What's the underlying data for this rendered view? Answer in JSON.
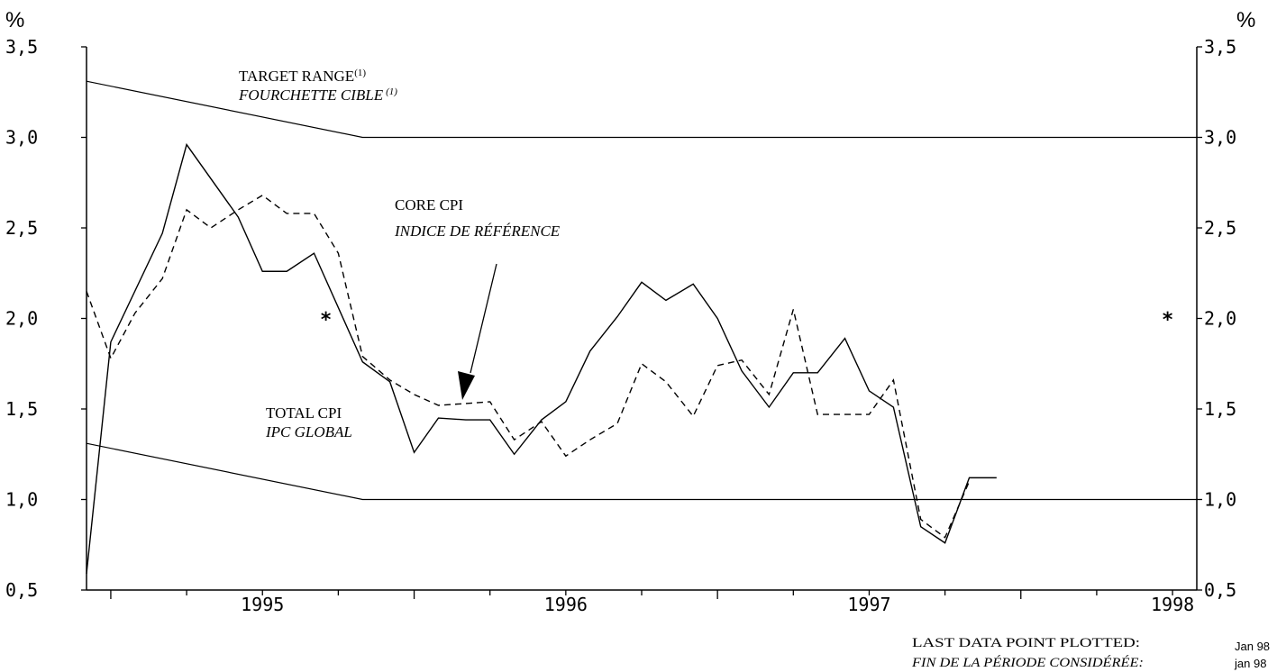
{
  "chart_data": {
    "type": "line",
    "y_unit_left": "%",
    "y_unit_right": "%",
    "ylim": [
      0.5,
      3.5
    ],
    "yticks": [
      "0,5",
      "1,0",
      "1,5",
      "2,0",
      "2,5",
      "3,0",
      "3,5"
    ],
    "xlim": [
      1994.92,
      1998.58
    ],
    "xtick_labels": [
      "1995",
      "1996",
      "1997",
      "1998"
    ],
    "grid": false,
    "series": [
      {
        "name": "TOTAL CPI / IPC GLOBAL",
        "style": "solid",
        "x": [
          1994.92,
          1995.0,
          1995.17,
          1995.25,
          1995.42,
          1995.5,
          1995.58,
          1995.67,
          1995.75,
          1995.83,
          1995.92,
          1996.0,
          1996.08,
          1996.17,
          1996.25,
          1996.33,
          1996.42,
          1996.5,
          1996.58,
          1996.67,
          1996.75,
          1996.83,
          1996.92,
          1997.0,
          1997.08,
          1997.17,
          1997.25,
          1997.33,
          1997.42,
          1997.5,
          1997.58,
          1997.67,
          1997.75,
          1997.83,
          1997.92
        ],
        "values": [
          0.59,
          1.87,
          2.47,
          2.96,
          2.56,
          2.26,
          2.26,
          2.36,
          2.06,
          1.76,
          1.65,
          1.26,
          1.45,
          1.44,
          1.44,
          1.25,
          1.44,
          1.54,
          1.82,
          2.01,
          2.2,
          2.1,
          2.19,
          2.0,
          1.71,
          1.51,
          1.7,
          1.7,
          1.89,
          1.6,
          1.51,
          0.85,
          0.76,
          1.12,
          1.12
        ]
      },
      {
        "name": "CORE CPI / INDICE DE RÉFÉRENCE",
        "style": "dashed",
        "x": [
          1994.92,
          1995.0,
          1995.08,
          1995.17,
          1995.25,
          1995.33,
          1995.42,
          1995.5,
          1995.58,
          1995.67,
          1995.75,
          1995.83,
          1995.92,
          1996.0,
          1996.08,
          1996.17,
          1996.25,
          1996.33,
          1996.42,
          1996.5,
          1996.58,
          1996.67,
          1996.75,
          1996.83,
          1996.92,
          1997.0,
          1997.08,
          1997.17,
          1997.25,
          1997.33,
          1997.42,
          1997.5,
          1997.58,
          1997.67,
          1997.75,
          1997.83
        ],
        "values": [
          2.15,
          1.78,
          2.03,
          2.22,
          2.6,
          2.5,
          2.6,
          2.68,
          2.58,
          2.58,
          2.36,
          1.79,
          1.66,
          1.58,
          1.52,
          1.53,
          1.54,
          1.33,
          1.43,
          1.24,
          1.33,
          1.42,
          1.75,
          1.65,
          1.46,
          1.74,
          1.77,
          1.58,
          2.05,
          1.47,
          1.47,
          1.47,
          1.66,
          0.89,
          0.79,
          1.1
        ]
      }
    ],
    "target_range": {
      "upper": {
        "x": [
          1994.92,
          1995.83,
          1998.58
        ],
        "values": [
          3.31,
          3.0,
          3.0
        ]
      },
      "lower": {
        "x": [
          1994.92,
          1995.83,
          1998.58
        ],
        "values": [
          1.31,
          1.0,
          1.0
        ]
      }
    },
    "annotations": {
      "target_range_en": "TARGET RANGE",
      "target_range_fr": "FOURCHETTE CIBLE",
      "footnote_mark": "(1)",
      "core_cpi_en": "CORE CPI",
      "core_cpi_fr": "INDICE DE RÉFÉRENCE",
      "total_cpi_en": "TOTAL CPI",
      "total_cpi_fr": "IPC GLOBAL",
      "star": "*"
    }
  },
  "footer": {
    "last_point_en": "LAST DATA POINT PLOTTED:",
    "last_point_fr": "FIN DE LA PÉRIODE CONSIDÉRÉE:",
    "last_point_value_en": "Jan 98",
    "last_point_value_fr": "jan 98"
  }
}
